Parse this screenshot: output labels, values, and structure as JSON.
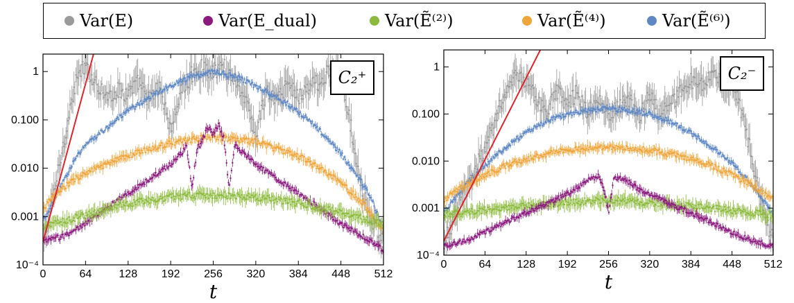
{
  "legend": {
    "items": [
      {
        "label": "Var(E)",
        "color": "#9b9b9b"
      },
      {
        "label": "Var(E_dual)",
        "color": "#8b1a7f"
      },
      {
        "label": "Var(Ẽ⁽²⁾)",
        "color": "#8cba3c"
      },
      {
        "label": "Var(Ẽ⁽⁴⁾)",
        "color": "#eea53a"
      },
      {
        "label": "Var(Ẽ⁽⁶⁾)",
        "color": "#5e87c4"
      }
    ]
  },
  "chart_data": [
    {
      "type": "scatter",
      "panel_label": "C₂⁺",
      "xlabel": "t",
      "ylabel": "",
      "xlim": [
        0,
        512
      ],
      "ylim": [
        0.0001,
        2.3
      ],
      "yscale": "log",
      "xticks": [
        "0",
        "64",
        "128",
        "192",
        "256",
        "320",
        "384",
        "448",
        "512"
      ],
      "xtick_values": [
        0,
        64,
        128,
        192,
        256,
        320,
        384,
        448,
        512
      ],
      "yticks": [
        "10⁻⁴",
        "0.001",
        "0.010",
        "0.100",
        "1"
      ],
      "ytick_values": [
        0.0001,
        0.001,
        0.01,
        0.1,
        1
      ],
      "fit_line": {
        "color": "#e0242a",
        "x": [
          0,
          76
        ],
        "y": [
          0.0003,
          2.3
        ]
      },
      "series": [
        {
          "name": "Var(E)",
          "color": "#9b9b9b",
          "x": [
            0,
            8,
            16,
            24,
            32,
            40,
            48,
            56,
            64,
            80,
            96,
            112,
            128,
            144,
            160,
            176,
            192,
            208,
            224,
            240,
            256,
            272,
            288,
            304,
            320,
            336,
            352,
            368,
            384,
            400,
            416,
            432,
            448,
            456,
            464,
            472,
            480,
            488,
            496,
            504,
            512
          ],
          "y": [
            0.0003,
            0.0008,
            0.003,
            0.01,
            0.04,
            0.15,
            0.5,
            1.0,
            1.2,
            0.6,
            0.3,
            0.4,
            0.35,
            0.6,
            0.25,
            0.5,
            0.06,
            0.4,
            0.9,
            1.2,
            1.0,
            1.3,
            0.7,
            0.3,
            0.05,
            0.4,
            0.25,
            0.6,
            0.3,
            0.5,
            0.6,
            1.0,
            0.8,
            0.25,
            0.06,
            0.015,
            0.004,
            0.0015,
            0.0008,
            0.0004,
            0.0003
          ]
        },
        {
          "name": "Var(Ẽ⁽⁶⁾)",
          "color": "#5e87c4",
          "x": [
            0,
            16,
            32,
            48,
            64,
            96,
            128,
            160,
            192,
            224,
            256,
            288,
            320,
            352,
            384,
            416,
            448,
            480,
            496,
            504,
            512
          ],
          "y": [
            0.0008,
            0.002,
            0.006,
            0.015,
            0.03,
            0.07,
            0.15,
            0.3,
            0.5,
            0.8,
            1.0,
            0.8,
            0.5,
            0.3,
            0.15,
            0.06,
            0.02,
            0.005,
            0.002,
            0.001,
            0.0005
          ]
        },
        {
          "name": "Var(Ẽ⁽⁴⁾)",
          "color": "#eea53a",
          "x": [
            0,
            16,
            32,
            48,
            64,
            96,
            128,
            160,
            192,
            224,
            256,
            288,
            320,
            352,
            384,
            416,
            448,
            480,
            496,
            512
          ],
          "y": [
            0.0015,
            0.0025,
            0.004,
            0.006,
            0.008,
            0.012,
            0.018,
            0.025,
            0.033,
            0.04,
            0.045,
            0.04,
            0.035,
            0.025,
            0.018,
            0.01,
            0.005,
            0.002,
            0.001,
            0.0005
          ]
        },
        {
          "name": "Var(E_dual)",
          "color": "#8b1a7f",
          "x": [
            0,
            32,
            64,
            96,
            128,
            160,
            192,
            208,
            216,
            224,
            232,
            240,
            248,
            256,
            264,
            272,
            280,
            288,
            304,
            320,
            352,
            384,
            416,
            448,
            480,
            512
          ],
          "y": [
            0.0003,
            0.0004,
            0.0007,
            0.0015,
            0.003,
            0.006,
            0.012,
            0.02,
            0.03,
            0.004,
            0.025,
            0.04,
            0.07,
            0.05,
            0.08,
            0.04,
            0.004,
            0.03,
            0.02,
            0.012,
            0.006,
            0.003,
            0.0015,
            0.0007,
            0.0004,
            0.0002
          ]
        },
        {
          "name": "Var(Ẽ⁽²⁾)",
          "color": "#8cba3c",
          "x": [
            0,
            32,
            64,
            96,
            128,
            160,
            192,
            224,
            256,
            288,
            320,
            352,
            384,
            416,
            448,
            480,
            512
          ],
          "y": [
            0.0006,
            0.0008,
            0.0011,
            0.0014,
            0.0018,
            0.0022,
            0.0025,
            0.0027,
            0.0028,
            0.0027,
            0.0025,
            0.0022,
            0.0019,
            0.0015,
            0.0012,
            0.0009,
            0.0007
          ]
        }
      ]
    },
    {
      "type": "scatter",
      "panel_label": "C₂⁻",
      "xlabel": "t",
      "ylabel": "",
      "xlim": [
        0,
        512
      ],
      "ylim": [
        0.0001,
        2.3
      ],
      "yscale": "log",
      "xticks": [
        "0",
        "64",
        "128",
        "192",
        "256",
        "320",
        "384",
        "448",
        "512"
      ],
      "xtick_values": [
        0,
        64,
        128,
        192,
        256,
        320,
        384,
        448,
        512
      ],
      "yticks": [
        "10⁻⁴",
        "0.001",
        "0.010",
        "0.100",
        "1"
      ],
      "ytick_values": [
        0.0001,
        0.001,
        0.01,
        0.1,
        1
      ],
      "fit_line": {
        "color": "#e0242a",
        "x": [
          0,
          150
        ],
        "y": [
          0.0002,
          2.3
        ]
      },
      "series": [
        {
          "name": "Var(E)",
          "color": "#9b9b9b",
          "x": [
            0,
            8,
            16,
            32,
            48,
            64,
            80,
            96,
            112,
            128,
            144,
            160,
            176,
            192,
            208,
            224,
            240,
            256,
            272,
            288,
            304,
            320,
            336,
            352,
            368,
            384,
            400,
            416,
            432,
            448,
            464,
            480,
            496,
            504,
            512
          ],
          "y": [
            0.0002,
            0.0003,
            0.0006,
            0.002,
            0.006,
            0.02,
            0.07,
            0.3,
            0.6,
            0.5,
            0.2,
            0.1,
            0.3,
            0.15,
            0.3,
            0.1,
            0.2,
            0.1,
            0.15,
            0.2,
            0.08,
            0.25,
            0.1,
            0.15,
            0.3,
            0.5,
            0.4,
            0.7,
            0.5,
            0.4,
            0.1,
            0.01,
            0.001,
            0.0004,
            0.0002
          ]
        },
        {
          "name": "Var(Ẽ⁽⁶⁾)",
          "color": "#5e87c4",
          "x": [
            0,
            16,
            32,
            64,
            96,
            128,
            160,
            192,
            224,
            256,
            288,
            320,
            352,
            384,
            416,
            448,
            480,
            512
          ],
          "y": [
            0.0008,
            0.0015,
            0.003,
            0.008,
            0.02,
            0.04,
            0.07,
            0.1,
            0.12,
            0.13,
            0.12,
            0.1,
            0.07,
            0.04,
            0.02,
            0.009,
            0.003,
            0.0008
          ]
        },
        {
          "name": "Var(Ẽ⁽⁴⁾)",
          "color": "#eea53a",
          "x": [
            0,
            32,
            64,
            96,
            128,
            160,
            192,
            224,
            256,
            288,
            320,
            352,
            384,
            416,
            448,
            480,
            512
          ],
          "y": [
            0.0015,
            0.003,
            0.005,
            0.008,
            0.011,
            0.014,
            0.017,
            0.019,
            0.02,
            0.019,
            0.017,
            0.014,
            0.011,
            0.008,
            0.005,
            0.003,
            0.0015
          ]
        },
        {
          "name": "Var(Ẽ⁽²⁾)",
          "color": "#8cba3c",
          "x": [
            0,
            32,
            64,
            96,
            128,
            160,
            192,
            224,
            256,
            288,
            320,
            352,
            384,
            416,
            448,
            480,
            512
          ],
          "y": [
            0.0007,
            0.0008,
            0.0009,
            0.001,
            0.0011,
            0.0012,
            0.0013,
            0.0014,
            0.0015,
            0.0014,
            0.0013,
            0.0012,
            0.0011,
            0.001,
            0.0009,
            0.0008,
            0.0007
          ]
        },
        {
          "name": "Var(E_dual)",
          "color": "#8b1a7f",
          "x": [
            0,
            32,
            64,
            96,
            128,
            160,
            192,
            208,
            224,
            240,
            248,
            256,
            264,
            272,
            288,
            304,
            320,
            352,
            384,
            416,
            448,
            480,
            512
          ],
          "y": [
            0.00015,
            0.0002,
            0.0003,
            0.0005,
            0.0008,
            0.0012,
            0.002,
            0.0028,
            0.0038,
            0.0048,
            0.003,
            0.0008,
            0.004,
            0.0045,
            0.0035,
            0.0025,
            0.002,
            0.0012,
            0.0008,
            0.0005,
            0.0003,
            0.0002,
            0.00015
          ]
        }
      ]
    }
  ]
}
